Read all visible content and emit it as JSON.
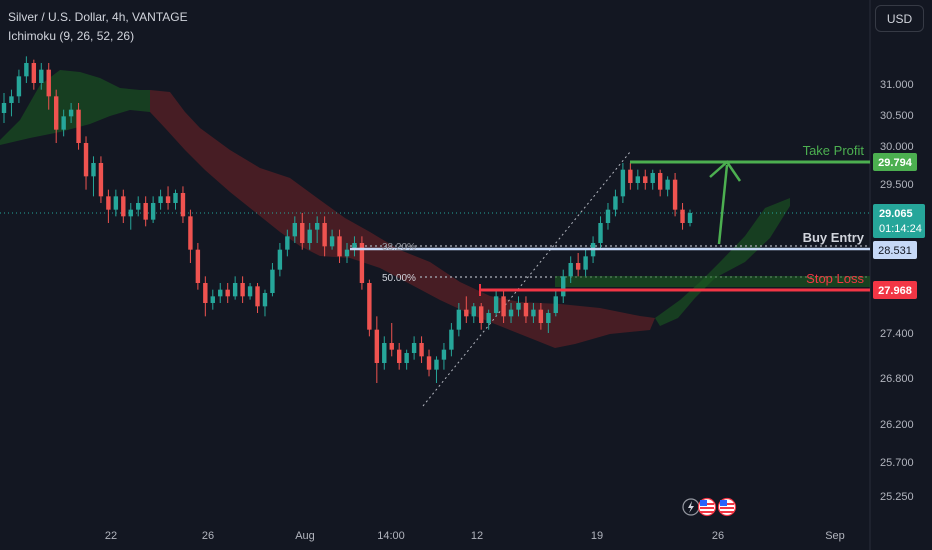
{
  "header": {
    "symbol": "Silver / U.S. Dollar, 4h, VANTAGE",
    "indicator": "Ichimoku (9, 26, 52, 26)"
  },
  "currency_button": "USD",
  "colors": {
    "background": "#131722",
    "bull": "#26a69a",
    "bear": "#ef5350",
    "take_profit": "#4caf50",
    "stop_loss": "#f23645",
    "entry": "#b2ccf2",
    "cloud_bull": "#1b5e20",
    "cloud_bear": "#6b2226",
    "axis_text": "#b2b5be"
  },
  "event_icons": [
    "lightning-icon",
    "us-flag-icon",
    "us-flag-icon"
  ],
  "chart_data": {
    "type": "candlestick",
    "y_axis_ticks": [
      "31.000",
      "30.500",
      "30.000",
      "29.500",
      "27.400",
      "26.800",
      "26.200",
      "25.700",
      "25.250"
    ],
    "x_axis_ticks": [
      "22",
      "26",
      "Aug",
      "14:00",
      "12",
      "19",
      "26",
      "Sep"
    ],
    "price_labels": [
      {
        "value": "29.794",
        "color": "#4caf50"
      },
      {
        "value": "29.065",
        "sub": "01:14:24",
        "color": "#26a69a"
      },
      {
        "value": "28.531",
        "color": "#b2ccf2"
      },
      {
        "value": "27.968",
        "color": "#f23645"
      }
    ],
    "annotations": {
      "take_profit": "Take Profit",
      "buy_entry": "Buy Entry",
      "stop_loss": "Stop Loss",
      "fib_382": "38.20%",
      "fib_500": "50.00%"
    },
    "levels": {
      "take_profit": 29.794,
      "buy_entry": 28.531,
      "stop_loss": 27.968,
      "last_price": 29.065
    },
    "ohlc": [
      [
        30.55,
        30.85,
        30.4,
        30.7
      ],
      [
        30.7,
        30.9,
        30.5,
        30.8
      ],
      [
        30.8,
        31.2,
        30.7,
        31.1
      ],
      [
        31.1,
        31.4,
        31.0,
        31.3
      ],
      [
        31.3,
        31.35,
        30.9,
        31.0
      ],
      [
        31.0,
        31.3,
        30.9,
        31.2
      ],
      [
        31.2,
        31.3,
        30.6,
        30.8
      ],
      [
        30.8,
        30.9,
        30.1,
        30.3
      ],
      [
        30.3,
        30.6,
        30.2,
        30.5
      ],
      [
        30.5,
        30.7,
        30.4,
        30.6
      ],
      [
        30.6,
        30.7,
        30.0,
        30.1
      ],
      [
        30.1,
        30.2,
        29.4,
        29.6
      ],
      [
        29.6,
        29.9,
        29.3,
        29.8
      ],
      [
        29.8,
        29.9,
        29.2,
        29.3
      ],
      [
        29.3,
        29.4,
        28.9,
        29.1
      ],
      [
        29.1,
        29.4,
        29.0,
        29.3
      ],
      [
        29.3,
        29.4,
        28.9,
        29.0
      ],
      [
        29.0,
        29.2,
        28.8,
        29.1
      ],
      [
        29.1,
        29.3,
        29.0,
        29.2
      ],
      [
        29.2,
        29.3,
        28.85,
        28.95
      ],
      [
        28.95,
        29.3,
        28.9,
        29.2
      ],
      [
        29.2,
        29.4,
        29.1,
        29.3
      ],
      [
        29.3,
        29.45,
        29.1,
        29.2
      ],
      [
        29.2,
        29.4,
        29.1,
        29.35
      ],
      [
        29.35,
        29.45,
        28.9,
        29.0
      ],
      [
        29.0,
        29.1,
        28.3,
        28.5
      ],
      [
        28.5,
        28.6,
        27.9,
        28.0
      ],
      [
        28.0,
        28.1,
        27.5,
        27.7
      ],
      [
        27.7,
        27.9,
        27.6,
        27.8
      ],
      [
        27.8,
        28.0,
        27.7,
        27.9
      ],
      [
        27.9,
        28.0,
        27.7,
        27.8
      ],
      [
        27.8,
        28.1,
        27.75,
        28.0
      ],
      [
        28.0,
        28.1,
        27.7,
        27.8
      ],
      [
        27.8,
        28.0,
        27.75,
        27.95
      ],
      [
        27.95,
        28.0,
        27.55,
        27.65
      ],
      [
        27.65,
        27.9,
        27.5,
        27.85
      ],
      [
        27.85,
        28.3,
        27.8,
        28.2
      ],
      [
        28.2,
        28.6,
        28.1,
        28.5
      ],
      [
        28.5,
        28.8,
        28.4,
        28.7
      ],
      [
        28.7,
        29.0,
        28.6,
        28.9
      ],
      [
        28.9,
        29.05,
        28.5,
        28.6
      ],
      [
        28.6,
        28.9,
        28.5,
        28.8
      ],
      [
        28.8,
        29.0,
        28.6,
        28.9
      ],
      [
        28.9,
        29.0,
        28.4,
        28.55
      ],
      [
        28.55,
        28.8,
        28.5,
        28.7
      ],
      [
        28.7,
        28.8,
        28.3,
        28.4
      ],
      [
        28.4,
        28.6,
        28.3,
        28.5
      ],
      [
        28.5,
        28.7,
        28.4,
        28.6
      ],
      [
        28.6,
        28.7,
        27.9,
        28.0
      ],
      [
        28.0,
        28.05,
        27.2,
        27.3
      ],
      [
        27.3,
        27.5,
        26.5,
        26.8
      ],
      [
        26.8,
        27.2,
        26.7,
        27.1
      ],
      [
        27.1,
        27.4,
        26.9,
        27.0
      ],
      [
        27.0,
        27.1,
        26.7,
        26.8
      ],
      [
        26.8,
        27.0,
        26.7,
        26.95
      ],
      [
        26.95,
        27.2,
        26.85,
        27.1
      ],
      [
        27.1,
        27.2,
        26.8,
        26.9
      ],
      [
        26.9,
        27.0,
        26.6,
        26.7
      ],
      [
        26.7,
        26.9,
        26.5,
        26.85
      ],
      [
        26.85,
        27.1,
        26.7,
        27.0
      ],
      [
        27.0,
        27.4,
        26.9,
        27.3
      ],
      [
        27.3,
        27.7,
        27.2,
        27.6
      ],
      [
        27.6,
        27.8,
        27.4,
        27.5
      ],
      [
        27.5,
        27.7,
        27.4,
        27.65
      ],
      [
        27.65,
        27.7,
        27.3,
        27.4
      ],
      [
        27.4,
        27.6,
        27.3,
        27.55
      ],
      [
        27.55,
        27.9,
        27.5,
        27.8
      ],
      [
        27.8,
        27.9,
        27.4,
        27.5
      ],
      [
        27.5,
        27.7,
        27.4,
        27.6
      ],
      [
        27.6,
        27.8,
        27.5,
        27.7
      ],
      [
        27.7,
        27.8,
        27.4,
        27.5
      ],
      [
        27.5,
        27.7,
        27.4,
        27.6
      ],
      [
        27.6,
        27.7,
        27.3,
        27.4
      ],
      [
        27.4,
        27.6,
        27.25,
        27.55
      ],
      [
        27.55,
        27.9,
        27.5,
        27.8
      ],
      [
        27.8,
        28.2,
        27.7,
        28.1
      ],
      [
        28.1,
        28.4,
        28.0,
        28.3
      ],
      [
        28.3,
        28.45,
        28.1,
        28.2
      ],
      [
        28.2,
        28.5,
        28.1,
        28.4
      ],
      [
        28.4,
        28.7,
        28.3,
        28.6
      ],
      [
        28.6,
        29.0,
        28.5,
        28.9
      ],
      [
        28.9,
        29.2,
        28.8,
        29.1
      ],
      [
        29.1,
        29.4,
        29.0,
        29.3
      ],
      [
        29.3,
        29.8,
        29.2,
        29.7
      ],
      [
        29.7,
        29.8,
        29.4,
        29.5
      ],
      [
        29.5,
        29.7,
        29.4,
        29.6
      ],
      [
        29.6,
        29.7,
        29.4,
        29.5
      ],
      [
        29.5,
        29.7,
        29.4,
        29.65
      ],
      [
        29.65,
        29.7,
        29.3,
        29.4
      ],
      [
        29.4,
        29.6,
        29.3,
        29.55
      ],
      [
        29.55,
        29.65,
        29.0,
        29.1
      ],
      [
        29.1,
        29.2,
        28.8,
        28.9
      ],
      [
        28.9,
        29.1,
        28.85,
        29.05
      ]
    ]
  }
}
